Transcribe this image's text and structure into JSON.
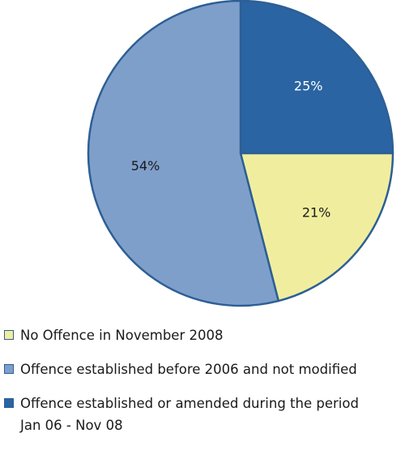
{
  "chart_data": {
    "type": "pie",
    "title": "",
    "slices": [
      {
        "label": "Offence established or amended during the period Jan 06  - Nov 08",
        "value": 25,
        "display": "25%",
        "color": "#2a64a2",
        "label_color": "#ffffff"
      },
      {
        "label": "No Offence in November 2008",
        "value": 21,
        "display": "21%",
        "color": "#f0ee9e",
        "label_color": "#1a1a1a"
      },
      {
        "label": "Offence established before 2006 and not modified",
        "value": 54,
        "display": "54%",
        "color": "#7f9fcb",
        "label_color": "#1a1a1a"
      }
    ],
    "start_angle_deg": 0,
    "direction": "clockwise",
    "edge_color": "#2d5f95",
    "legend_position": "bottom"
  },
  "legend": {
    "items": [
      {
        "label": "No Offence in November 2008",
        "color": "#f0ee9e"
      },
      {
        "label": "Offence established before 2006 and not modified",
        "color": "#7f9fcb"
      },
      {
        "label": "Offence established or amended during the period",
        "label_line2": "Jan 06  - Nov 08",
        "color": "#2a64a2"
      }
    ]
  }
}
